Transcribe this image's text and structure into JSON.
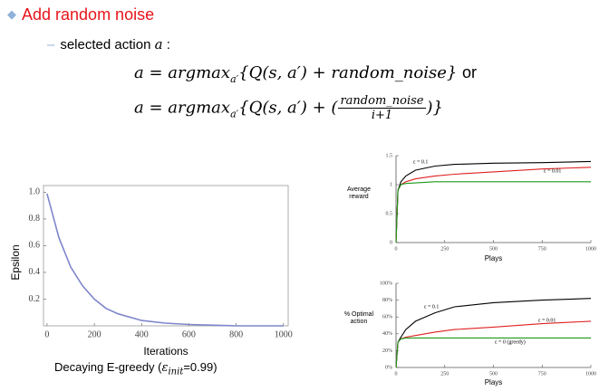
{
  "slide": {
    "bullet": "Add random noise",
    "sub_bullet": {
      "text": "selected action",
      "var": "a",
      "colon": ":"
    },
    "formula_1": {
      "lhs": "a = argmax",
      "sub": "a′",
      "body": "{Q(s, a′) + random_noise}",
      "tail": "or"
    },
    "formula_2": {
      "lhs": "a = argmax",
      "sub": "a′",
      "open": "{Q(s, a′) + (",
      "num": "random_noise",
      "den": "i+1",
      "close": ")}"
    },
    "caption": {
      "pre": "Decaying E-greedy (",
      "sym": "ε",
      "sub": "init",
      "post": "=0.99)"
    }
  },
  "chart_data": [
    {
      "type": "line",
      "x_label": "Iterations",
      "y_label": "Epsilon",
      "xlim": [
        -15,
        1020
      ],
      "ylim": [
        0,
        1.05
      ],
      "xticks": [
        0,
        200,
        400,
        600,
        800,
        1000
      ],
      "yticks": [
        0.2,
        0.4,
        0.6,
        0.8,
        {
          "value": 1,
          "label": "1.0"
        }
      ],
      "x": [
        0,
        50,
        100,
        150,
        200,
        250,
        300,
        400,
        500,
        600,
        800,
        1000
      ],
      "series": [
        {
          "color": "#7f86cc",
          "values": [
            0.99,
            0.66,
            0.44,
            0.3,
            0.2,
            0.13,
            0.09,
            0.04,
            0.02,
            0.01,
            0,
            0
          ]
        }
      ]
    },
    {
      "type": "line",
      "x_label": "Plays",
      "y_label": "Average reward",
      "xlim": [
        0,
        1000
      ],
      "ylim": [
        0,
        1.5
      ],
      "xticks": [
        0,
        250,
        500,
        750,
        1000
      ],
      "yticks": [
        0,
        0.5,
        1,
        1.5
      ],
      "x": [
        0,
        10,
        25,
        50,
        100,
        200,
        300,
        500,
        750,
        1000
      ],
      "series": [
        {
          "name": "ε = 0.1",
          "color": "#000000",
          "values": [
            0,
            0.9,
            1.05,
            1.15,
            1.25,
            1.32,
            1.35,
            1.37,
            1.38,
            1.4
          ]
        },
        {
          "name": "ε = 0.01",
          "color": "#e02020",
          "values": [
            0,
            0.9,
            1.0,
            1.05,
            1.1,
            1.15,
            1.18,
            1.22,
            1.27,
            1.3
          ]
        },
        {
          "color": "#1a9a1a",
          "values": [
            0,
            0.9,
            1.0,
            1.02,
            1.03,
            1.05,
            1.05,
            1.05,
            1.05,
            1.05
          ]
        }
      ]
    },
    {
      "type": "line",
      "x_label": "Plays",
      "y_label": "% Optimal action",
      "xlim": [
        0,
        1000
      ],
      "ylim": [
        0,
        100
      ],
      "xticks": [
        0,
        250,
        500,
        750,
        1000
      ],
      "yticks": [
        {
          "value": 0,
          "label": "0%"
        },
        {
          "value": 20,
          "label": "20%"
        },
        {
          "value": 40,
          "label": "40%"
        },
        {
          "value": 60,
          "label": "60%"
        },
        {
          "value": 80,
          "label": "80%"
        },
        {
          "value": 100,
          "label": "100%"
        }
      ],
      "x": [
        0,
        10,
        25,
        50,
        100,
        200,
        300,
        500,
        750,
        1000
      ],
      "series": [
        {
          "name": "ε = 0.1",
          "color": "#000000",
          "values": [
            0,
            30,
            36,
            45,
            55,
            65,
            72,
            77,
            80,
            82
          ]
        },
        {
          "name": "ε = 0.01",
          "color": "#e02020",
          "values": [
            0,
            30,
            34,
            36,
            38,
            42,
            45,
            48,
            52,
            55
          ]
        },
        {
          "name": "ε = 0 (greedy)",
          "color": "#1a9a1a",
          "values": [
            0,
            30,
            34,
            35,
            35,
            35,
            35,
            35,
            35,
            35
          ]
        }
      ]
    }
  ]
}
